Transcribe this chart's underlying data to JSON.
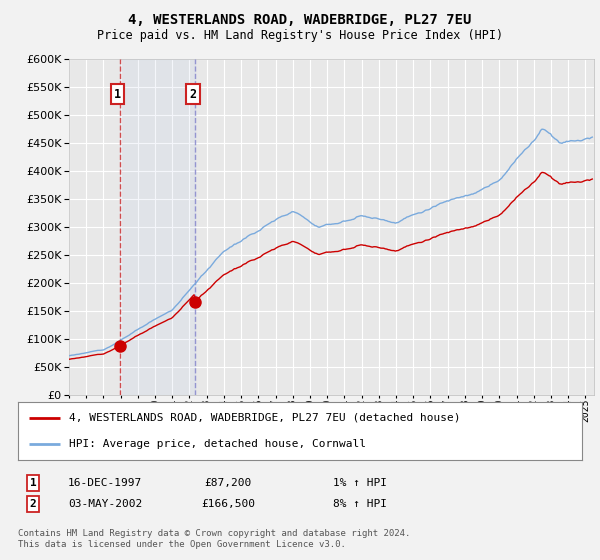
{
  "title": "4, WESTERLANDS ROAD, WADEBRIDGE, PL27 7EU",
  "subtitle": "Price paid vs. HM Land Registry's House Price Index (HPI)",
  "legend_line1": "4, WESTERLANDS ROAD, WADEBRIDGE, PL27 7EU (detached house)",
  "legend_line2": "HPI: Average price, detached house, Cornwall",
  "sale1_date": "16-DEC-1997",
  "sale1_price": "£87,200",
  "sale1_hpi": "1% ↑ HPI",
  "sale1_year": 1997.96,
  "sale1_value": 87200,
  "sale2_date": "03-MAY-2002",
  "sale2_price": "£166,500",
  "sale2_hpi": "8% ↑ HPI",
  "sale2_year": 2002.34,
  "sale2_value": 166500,
  "ylim": [
    0,
    600000
  ],
  "xlim_start": 1995.0,
  "xlim_end": 2025.5,
  "price_line_color": "#cc0000",
  "hpi_line_color": "#7aaadd",
  "background_color": "#f2f2f2",
  "plot_bg_color": "#e8e8e8",
  "grid_color": "#ffffff",
  "footnote": "Contains HM Land Registry data © Crown copyright and database right 2024.\nThis data is licensed under the Open Government Licence v3.0."
}
